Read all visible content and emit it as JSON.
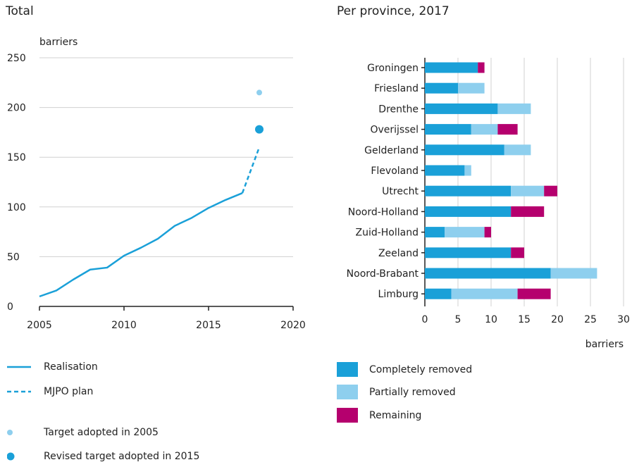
{
  "colors": {
    "primary": "#1aa0d8",
    "light": "#8ecfee",
    "remaining": "#b5006e",
    "grid": "#d0d0d0",
    "axis": "#222222"
  },
  "chart_data": [
    {
      "type": "line",
      "title": "Total",
      "ylabel": "barriers",
      "xlim": [
        2005,
        2020
      ],
      "ylim": [
        0,
        250
      ],
      "xticks": [
        "2005",
        "2010",
        "2015",
        "2020"
      ],
      "yticks": [
        "0",
        "50",
        "100",
        "150",
        "200",
        "250"
      ],
      "grid": true,
      "series": [
        {
          "name": "Realisation",
          "style": "solid",
          "x": [
            2005,
            2006,
            2007,
            2008,
            2009,
            2010,
            2011,
            2012,
            2013,
            2014,
            2015,
            2016,
            2017
          ],
          "y": [
            10,
            16,
            27,
            37,
            39,
            51,
            59,
            68,
            81,
            89,
            99,
            107,
            114
          ]
        },
        {
          "name": "MJPO plan",
          "style": "dashed",
          "x": [
            2017,
            2018
          ],
          "y": [
            114,
            160
          ]
        }
      ],
      "points": [
        {
          "name": "Target adopted in 2005",
          "x": 2018,
          "y": 215,
          "size": "small",
          "color": "#8ecfee"
        },
        {
          "name": "Revised target adopted in 2015",
          "x": 2018,
          "y": 178,
          "size": "large",
          "color": "#1aa0d8"
        }
      ]
    },
    {
      "type": "bar",
      "orientation": "horizontal",
      "stacked": true,
      "title": "Per province, 2017",
      "xlabel": "barriers",
      "xlim": [
        0,
        30
      ],
      "xticks": [
        "0",
        "5",
        "10",
        "15",
        "20",
        "25",
        "30"
      ],
      "grid": true,
      "categories": [
        "Groningen",
        "Friesland",
        "Drenthe",
        "Overijssel",
        "Gelderland",
        "Flevoland",
        "Utrecht",
        "Noord-Holland",
        "Zuid-Holland",
        "Zeeland",
        "Noord-Brabant",
        "Limburg"
      ],
      "series": [
        {
          "name": "Completely removed",
          "color": "#1aa0d8",
          "values": [
            8,
            5,
            11,
            7,
            12,
            6,
            13,
            13,
            3,
            13,
            19,
            4
          ]
        },
        {
          "name": "Partially removed",
          "color": "#8ecfee",
          "values": [
            0,
            4,
            5,
            4,
            4,
            1,
            5,
            0,
            6,
            0,
            7,
            10
          ]
        },
        {
          "name": "Remaining",
          "color": "#b5006e",
          "values": [
            1,
            0,
            0,
            3,
            0,
            0,
            2,
            5,
            1,
            2,
            0,
            5
          ]
        }
      ]
    }
  ],
  "legend_left": [
    {
      "label": "Realisation",
      "kind": "solid-line"
    },
    {
      "label": "MJPO plan",
      "kind": "dashed-line"
    },
    {
      "label": "Target adopted in 2005",
      "kind": "small-dot"
    },
    {
      "label": "Revised target adopted in 2015",
      "kind": "large-dot"
    }
  ],
  "legend_right": [
    {
      "label": "Completely removed",
      "kind": "box-dark"
    },
    {
      "label": "Partially removed",
      "kind": "box-light"
    },
    {
      "label": "Remaining",
      "kind": "box-remaining"
    }
  ]
}
